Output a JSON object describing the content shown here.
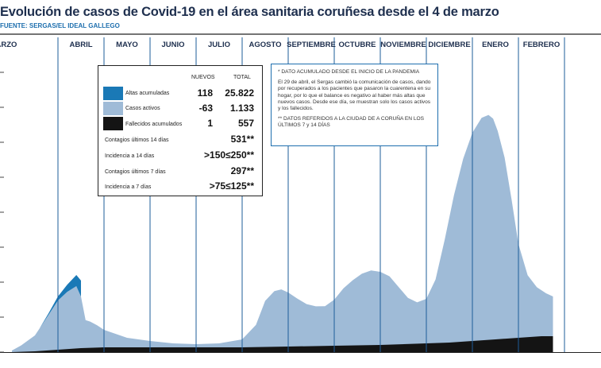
{
  "title": "Evolución de casos de Covid-19 en el área sanitaria coruñesa desde el 4 de marzo",
  "source": "FUENTE: SERGAS/EL IDEAL GALLEGO",
  "colors": {
    "altas": "#1a79b6",
    "activos": "#9fbbd7",
    "fallecidos": "#141414",
    "title": "#1e2f4e",
    "source": "#1e6fae",
    "month_line": "#1e5c9a"
  },
  "legend": {
    "col_nuevos": "NUEVOS",
    "col_total": "TOTAL",
    "rows": [
      {
        "label": "Altas acumuladas",
        "nuevos": "118",
        "total": "25.822",
        "color": "#1a79b6"
      },
      {
        "label": "Casos activos",
        "nuevos": "-63",
        "total": "1.133",
        "color": "#9fbbd7"
      },
      {
        "label": "Fallecidos acumulados",
        "nuevos": "1",
        "total": "557",
        "color": "#141414"
      }
    ],
    "stats": [
      {
        "label": "Contagios últimos 14 días",
        "value": "531**"
      },
      {
        "label": "Incidencia a 14 días",
        "value": ">150≤250**"
      },
      {
        "label": "Contagios últimos 7 días",
        "value": "297**"
      },
      {
        "label": "Incidencia a 7 días",
        "value": ">75≤125**"
      }
    ]
  },
  "notes": {
    "note1_title": "* DATO ACUMULADO DESDE EL INICIO DE LA PANDEMIA",
    "note1_body": "El 29 de abril, el Sergas cambió la comunicación de casos, dando por recuperados a los pacientes que pasaron la cuarentena en su hogar, por lo que el balance es negativo al haber más altas que nuevos casos. Desde ese día, se muestran solo los casos activos y los fallecidos.",
    "note2": "** DATOS REFERIDOS A LA CIUDAD DE A CORUÑA EN LOS ÚLTIMOS 7 y 14 DÍAS"
  },
  "chart_data": {
    "type": "area",
    "months": [
      "MARZO",
      "ABRIL",
      "MAYO",
      "JUNIO",
      "JULIO",
      "AGOSTO",
      "SEPTIEMBRE",
      "OCTUBRE",
      "NOVIEMBRE",
      "DICIEMBRE",
      "ENERO",
      "FEBRERO"
    ],
    "y_unit_note": "relative scale, 0 = baseline",
    "grid": false,
    "series": [
      {
        "name": "Casos activos",
        "x": [
          0,
          0.2,
          0.5,
          0.8,
          1.0,
          1.2,
          1.45,
          1.55,
          1.6,
          1.7,
          1.85,
          2.0,
          2.2,
          2.5,
          3.0,
          3.5,
          4.0,
          4.5,
          5.0,
          5.3,
          5.5,
          5.7,
          5.85,
          6.0,
          6.2,
          6.4,
          6.6,
          6.8,
          7.0,
          7.2,
          7.4,
          7.6,
          7.8,
          8.0,
          8.2,
          8.4,
          8.6,
          8.8,
          9.0,
          9.2,
          9.4,
          9.6,
          9.8,
          10.0,
          10.2,
          10.35,
          10.45,
          10.55,
          10.7,
          10.85,
          11.0,
          11.2,
          11.4,
          11.6,
          11.75
        ],
        "values": [
          2,
          8,
          20,
          45,
          62,
          72,
          80,
          50,
          35,
          33,
          28,
          22,
          18,
          12,
          8,
          5,
          4,
          5,
          10,
          28,
          58,
          70,
          72,
          68,
          60,
          53,
          50,
          50,
          58,
          72,
          82,
          90,
          94,
          92,
          86,
          72,
          58,
          52,
          56,
          80,
          130,
          185,
          230,
          262,
          280,
          283,
          278,
          262,
          228,
          175,
          118,
          78,
          62,
          54,
          50
        ]
      },
      {
        "name": "Altas acumuladas",
        "x": [
          0.6,
          0.8,
          1.0,
          1.2,
          1.4,
          1.5
        ],
        "values": [
          0,
          2,
          5,
          9,
          14,
          20
        ]
      },
      {
        "name": "Fallecidos acumulados",
        "x": [
          0,
          0.5,
          1.0,
          1.5,
          2.0,
          3.0,
          4.0,
          5.0,
          6.0,
          7.0,
          8.0,
          9.0,
          9.5,
          10.0,
          10.5,
          11.0,
          11.5,
          11.75
        ],
        "values": [
          0,
          1,
          3,
          5,
          6,
          6,
          6,
          6,
          7,
          8,
          9,
          11,
          12,
          14,
          16,
          18,
          20,
          20
        ]
      }
    ]
  }
}
